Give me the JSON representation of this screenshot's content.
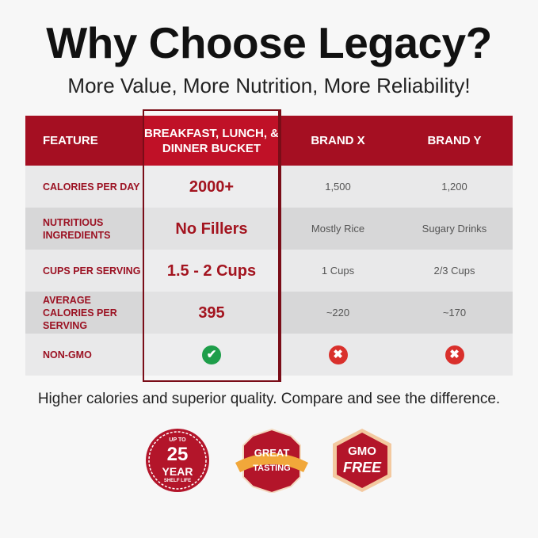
{
  "title": "Why Choose Legacy?",
  "subtitle": "More Value, More Nutrition, More Reliability!",
  "table": {
    "headers": [
      "FEATURE",
      "BREAKFAST, LUNCH, & DINNER BUCKET",
      "BRAND X",
      "BRAND Y"
    ],
    "rows": [
      {
        "feature": "CALORIES PER DAY",
        "legacy": "2000+",
        "brand_x": "1,500",
        "brand_y": "1,200"
      },
      {
        "feature": "NUTRITIOUS INGREDIENTS",
        "legacy": "No Fillers",
        "brand_x": "Mostly Rice",
        "brand_y": "Sugary Drinks"
      },
      {
        "feature": "CUPS PER SERVING",
        "legacy": "1.5 - 2 Cups",
        "brand_x": "1 Cups",
        "brand_y": "2/3 Cups"
      },
      {
        "feature": "AVERAGE CALORIES PER SERVING",
        "legacy": "395",
        "brand_x": "~220",
        "brand_y": "~170"
      },
      {
        "feature": "NON-GMO",
        "legacy_icon": "check-circle-icon",
        "brand_x_icon": "x-circle-icon",
        "brand_y_icon": "x-circle-icon"
      }
    ]
  },
  "footer": "Higher calories and superior quality. Compare and see the difference.",
  "badges": [
    {
      "top": "UP TO",
      "main": "25",
      "sub": "YEAR",
      "small": "SHELF LIFE"
    },
    {
      "main": "GREAT",
      "sub": "TASTING"
    },
    {
      "main": "GMO",
      "sub": "FREE"
    }
  ],
  "colors": {
    "brand_red": "#a50f22",
    "check_green": "#1e9e4a",
    "x_red": "#d9302c"
  }
}
